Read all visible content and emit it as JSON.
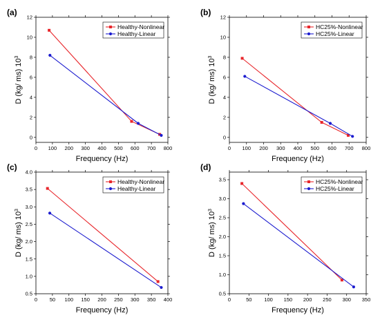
{
  "chart_data": [
    {
      "panel": "(a)",
      "type": "line",
      "xlabel": "Frequency (Hz)",
      "ylabel": "D (kg/ ms) 10",
      "ylabel_superscript": "3",
      "xlim": [
        0,
        800
      ],
      "ylim": [
        -0.5,
        12
      ],
      "x_ticks": [
        "0",
        "100",
        "200",
        "300",
        "400",
        "500",
        "600",
        "700",
        "800"
      ],
      "y_ticks": [
        "0",
        "2",
        "4",
        "6",
        "8",
        "10",
        "12"
      ],
      "legend_position": "top-right",
      "series": [
        {
          "name": "Healthy-Nonlinear",
          "color": "#e8262b",
          "marker": "square",
          "x": [
            80,
            580,
            750
          ],
          "y": [
            10.7,
            1.6,
            0.3
          ]
        },
        {
          "name": "Healthy-Linear",
          "color": "#1c1ccf",
          "marker": "circle",
          "x": [
            85,
            620,
            760
          ],
          "y": [
            8.2,
            1.4,
            0.2
          ]
        }
      ]
    },
    {
      "panel": "(b)",
      "type": "line",
      "xlabel": "Frequency (Hz)",
      "ylabel": "D (kg/ ms) 10",
      "ylabel_superscript": "3",
      "xlim": [
        0,
        800
      ],
      "ylim": [
        -0.5,
        12
      ],
      "x_ticks": [
        "0",
        "100",
        "200",
        "300",
        "400",
        "500",
        "600",
        "700",
        "800"
      ],
      "y_ticks": [
        "0",
        "2",
        "4",
        "6",
        "8",
        "10",
        "12"
      ],
      "legend_position": "top-right",
      "series": [
        {
          "name": "HC25%-Nonlinear",
          "color": "#e8262b",
          "marker": "square",
          "x": [
            75,
            540,
            695
          ],
          "y": [
            7.9,
            1.5,
            0.2
          ]
        },
        {
          "name": "HC25%-Linear",
          "color": "#1c1ccf",
          "marker": "circle",
          "x": [
            90,
            590,
            720
          ],
          "y": [
            6.1,
            1.4,
            0.1
          ]
        }
      ]
    },
    {
      "panel": "(c)",
      "type": "line",
      "xlabel": "Frequency (Hz)",
      "ylabel": "D (kg/ ms) 10",
      "ylabel_superscript": "3",
      "xlim": [
        0,
        400
      ],
      "ylim": [
        0.5,
        4.0
      ],
      "x_ticks": [
        "0",
        "50",
        "100",
        "150",
        "200",
        "250",
        "300",
        "350",
        "400"
      ],
      "y_ticks": [
        "0.5",
        "1.0",
        "1.5",
        "2.0",
        "2.5",
        "3.0",
        "3.5",
        "4.0"
      ],
      "legend_position": "top-right",
      "series": [
        {
          "name": "Healthy-Nonlinear",
          "color": "#e8262b",
          "marker": "square",
          "x": [
            35,
            370
          ],
          "y": [
            3.53,
            0.85
          ]
        },
        {
          "name": "Healthy-Linear",
          "color": "#1c1ccf",
          "marker": "circle",
          "x": [
            42,
            380
          ],
          "y": [
            2.82,
            0.68
          ]
        }
      ]
    },
    {
      "panel": "(d)",
      "type": "line",
      "xlabel": "Frequency (Hz)",
      "ylabel": "D (kg/ ms) 10",
      "ylabel_superscript": "3",
      "xlim": [
        0,
        350
      ],
      "ylim": [
        0.5,
        3.7
      ],
      "x_ticks": [
        "0",
        "50",
        "100",
        "150",
        "200",
        "250",
        "300",
        "350"
      ],
      "y_ticks": [
        "0.5",
        "1.0",
        "1.5",
        "2.0",
        "2.5",
        "3.0",
        "3.5"
      ],
      "legend_position": "top-right",
      "series": [
        {
          "name": "HC25%-Nonlinear",
          "color": "#e8262b",
          "marker": "square",
          "x": [
            32,
            288
          ],
          "y": [
            3.4,
            0.86
          ]
        },
        {
          "name": "HC25%-Linear",
          "color": "#1c1ccf",
          "marker": "circle",
          "x": [
            36,
            318
          ],
          "y": [
            2.87,
            0.68
          ]
        }
      ]
    }
  ]
}
